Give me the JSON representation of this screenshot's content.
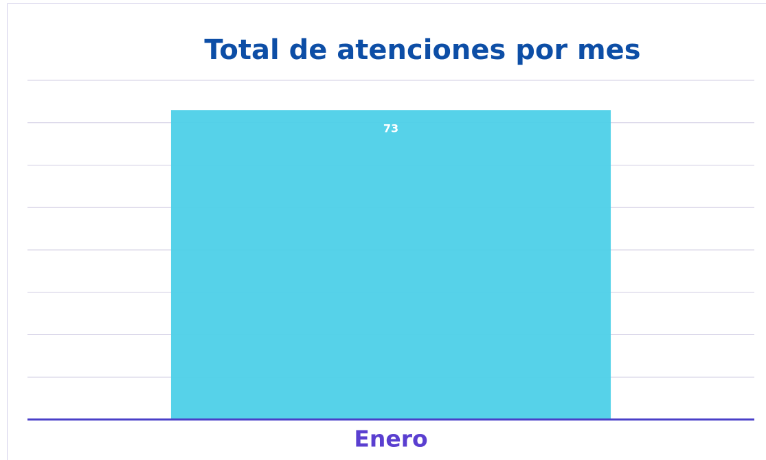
{
  "chart_data": {
    "type": "bar",
    "title": "Total de atenciones por mes",
    "categories": [
      "Enero"
    ],
    "values": [
      73
    ],
    "color": "#4dd0e8",
    "ylim": [
      0,
      80
    ],
    "yticks": [
      0,
      10,
      20,
      30,
      40,
      50,
      60,
      70,
      80
    ],
    "grid": true
  }
}
